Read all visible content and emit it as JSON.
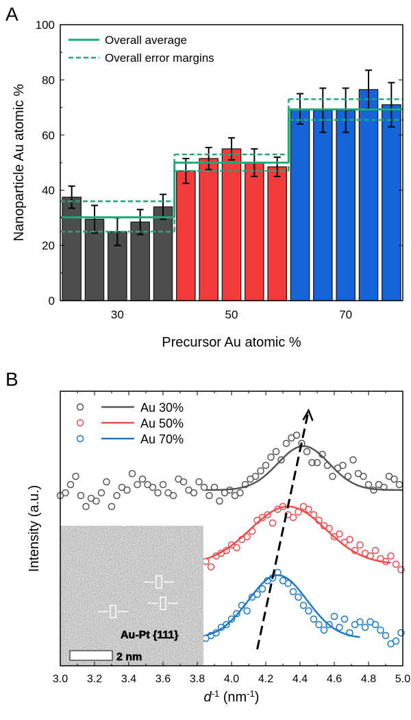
{
  "chart_data": [
    {
      "panel_label": "A",
      "type": "bar",
      "xlabel": "Precursor Au atomic %",
      "ylabel": "Nanoparticle Au atomic %",
      "ylim": [
        0,
        100
      ],
      "yticks": [
        0,
        20,
        40,
        60,
        80,
        100
      ],
      "grid": false,
      "legend_placement": "top-left",
      "legend": [
        "Overall average",
        "Overall error margins"
      ],
      "groups": [
        {
          "category": "30",
          "color": "#4d4d4d",
          "values": [
            37.5,
            29.5,
            25,
            28.5,
            34
          ],
          "errors": [
            4,
            5,
            5,
            4.5,
            4.5
          ],
          "average": 30.2,
          "margins": [
            25,
            36
          ]
        },
        {
          "category": "50",
          "color": "#f23c3c",
          "values": [
            47,
            51.5,
            55,
            50,
            48.5
          ],
          "errors": [
            4.5,
            4,
            4,
            5,
            3.5
          ],
          "average": 50,
          "margins": [
            47,
            53
          ]
        },
        {
          "category": "70",
          "color": "#1565d8",
          "values": [
            69.5,
            69,
            69,
            76.5,
            71
          ],
          "errors": [
            5.5,
            8,
            8,
            7,
            8
          ],
          "average": 69.3,
          "margins": [
            65.5,
            73
          ]
        }
      ],
      "line_color": "#1daa78"
    },
    {
      "panel_label": "B",
      "type": "scatter",
      "xlabel_italic": "d",
      "xlabel_sup": "-1",
      "xlabel_rest": " (nm",
      "xlabel_sup2": "-1",
      "xlabel_end": ")",
      "ylabel": "Intensity (a.u.)",
      "xlim": [
        3.0,
        5.0
      ],
      "xticks": [
        "3.0",
        "3.2",
        "3.4",
        "3.6",
        "3.8",
        "4.0",
        "4.2",
        "4.4",
        "4.6",
        "4.8",
        "5.0"
      ],
      "ylim": [
        0,
        1
      ],
      "legend_placement": "top-left",
      "series": [
        {
          "name": "Au 30%",
          "color": "#555555",
          "fit": {
            "base": 0.64,
            "amp": 0.16,
            "center": 4.42,
            "sigma": 0.15,
            "range": [
              3.85,
              5.0
            ]
          },
          "x": [
            3.0,
            3.03,
            3.06,
            3.09,
            3.12,
            3.15,
            3.18,
            3.21,
            3.24,
            3.27,
            3.3,
            3.33,
            3.36,
            3.39,
            3.42,
            3.45,
            3.48,
            3.51,
            3.54,
            3.57,
            3.6,
            3.63,
            3.66,
            3.69,
            3.72,
            3.75,
            3.78,
            3.81,
            3.84,
            3.87,
            3.9,
            3.93,
            3.96,
            3.99,
            4.02,
            4.05,
            4.08,
            4.11,
            4.14,
            4.17,
            4.2,
            4.23,
            4.26,
            4.29,
            4.32,
            4.35,
            4.38,
            4.41,
            4.44,
            4.47,
            4.5,
            4.53,
            4.56,
            4.59,
            4.62,
            4.65,
            4.68,
            4.71,
            4.74,
            4.77,
            4.8,
            4.83,
            4.86,
            4.89,
            4.92,
            4.95,
            4.98
          ],
          "y": [
            0.62,
            0.63,
            0.66,
            0.69,
            0.62,
            0.58,
            0.61,
            0.6,
            0.63,
            0.67,
            0.58,
            0.62,
            0.65,
            0.64,
            0.7,
            0.66,
            0.68,
            0.66,
            0.65,
            0.63,
            0.66,
            0.63,
            0.62,
            0.68,
            0.67,
            0.64,
            0.63,
            0.67,
            0.65,
            0.62,
            0.65,
            0.6,
            0.63,
            0.64,
            0.62,
            0.63,
            0.66,
            0.68,
            0.69,
            0.71,
            0.73,
            0.76,
            0.78,
            0.75,
            0.81,
            0.83,
            0.84,
            0.81,
            0.78,
            0.74,
            0.74,
            0.77,
            0.73,
            0.69,
            0.72,
            0.73,
            0.69,
            0.75,
            0.7,
            0.69,
            0.66,
            0.64,
            0.66,
            0.65,
            0.69,
            0.68,
            0.66
          ]
        },
        {
          "name": "Au 50%",
          "color": "#ee4b4b",
          "fit": {
            "base": 0.37,
            "amp": 0.21,
            "center": 4.33,
            "sigma": 0.22,
            "range": [
              3.85,
              4.93
            ]
          },
          "x": [
            3.85,
            3.88,
            3.91,
            3.94,
            3.97,
            4.0,
            4.03,
            4.06,
            4.09,
            4.12,
            4.15,
            4.18,
            4.21,
            4.24,
            4.27,
            4.3,
            4.33,
            4.36,
            4.39,
            4.42,
            4.45,
            4.48,
            4.51,
            4.54,
            4.57,
            4.6,
            4.63,
            4.66,
            4.69,
            4.72,
            4.75,
            4.78,
            4.81,
            4.84,
            4.87,
            4.9,
            4.93,
            4.96,
            4.99
          ],
          "y": [
            0.38,
            0.36,
            0.4,
            0.41,
            0.42,
            0.44,
            0.43,
            0.46,
            0.47,
            0.49,
            0.53,
            0.54,
            0.55,
            0.52,
            0.57,
            0.58,
            0.55,
            0.54,
            0.56,
            0.58,
            0.57,
            0.55,
            0.53,
            0.51,
            0.5,
            0.47,
            0.48,
            0.45,
            0.46,
            0.42,
            0.44,
            0.41,
            0.4,
            0.42,
            0.39,
            0.38,
            0.4,
            0.37,
            0.35
          ]
        },
        {
          "name": "Au 70%",
          "color": "#1a78c8",
          "fit": {
            "base": 0.1,
            "amp": 0.23,
            "center": 4.27,
            "sigma": 0.17,
            "range": [
              3.85,
              4.75
            ]
          },
          "x": [
            3.85,
            3.88,
            3.91,
            3.94,
            3.97,
            4.0,
            4.03,
            4.06,
            4.09,
            4.12,
            4.15,
            4.18,
            4.21,
            4.24,
            4.27,
            4.3,
            4.33,
            4.36,
            4.39,
            4.42,
            4.45,
            4.48,
            4.51,
            4.54,
            4.57,
            4.6,
            4.63,
            4.66,
            4.69,
            4.72,
            4.75,
            4.78,
            4.81,
            4.84,
            4.87,
            4.9,
            4.93,
            4.96,
            4.99
          ],
          "y": [
            0.1,
            0.11,
            0.12,
            0.14,
            0.15,
            0.17,
            0.19,
            0.22,
            0.2,
            0.25,
            0.26,
            0.28,
            0.31,
            0.32,
            0.34,
            0.31,
            0.3,
            0.27,
            0.25,
            0.22,
            0.2,
            0.17,
            0.15,
            0.13,
            0.15,
            0.18,
            0.14,
            0.17,
            0.12,
            0.15,
            0.16,
            0.14,
            0.16,
            0.15,
            0.13,
            0.11,
            0.08,
            0.09,
            0.12
          ]
        }
      ],
      "arrow": {
        "from": [
          4.15,
          0.06
        ],
        "to": [
          4.45,
          0.93
        ]
      },
      "inset": {
        "label": "Au-Pt {111}",
        "scale_bar": "2 nm"
      }
    }
  ]
}
